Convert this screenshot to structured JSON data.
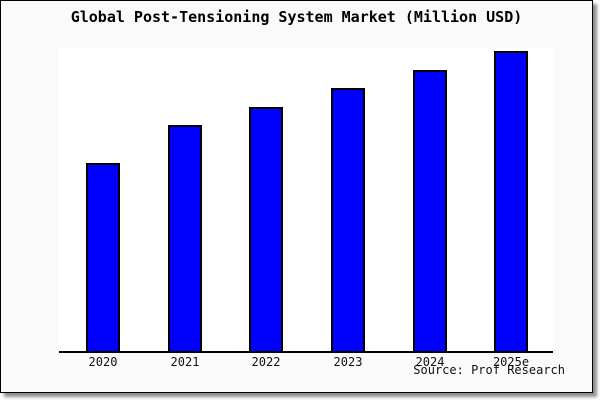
{
  "title": "Global Post-Tensioning System Market (Million USD)",
  "source": "Source: Prof Research",
  "colors": {
    "bar_fill": "#0000ff",
    "bar_border": "#000000",
    "frame_background": "#fafafa",
    "plot_background": "#ffffff",
    "axis_line": "#000000",
    "text": "#000000"
  },
  "chart_data": {
    "type": "bar",
    "title": "Global Post-Tensioning System Market (Million USD)",
    "categories": [
      "2020",
      "2021",
      "2022",
      "2023",
      "2024",
      "2025e"
    ],
    "values": [
      188,
      226,
      244,
      263,
      281,
      300
    ],
    "value_note": "no y-axis ticks shown; values are relative magnitudes estimated from bar pixel heights (baseline assumed 0)",
    "xlabel": "",
    "ylabel": "",
    "ylim": [
      0,
      303
    ],
    "grid": false,
    "legend": false,
    "annotations": [
      "Source: Prof Research"
    ]
  }
}
